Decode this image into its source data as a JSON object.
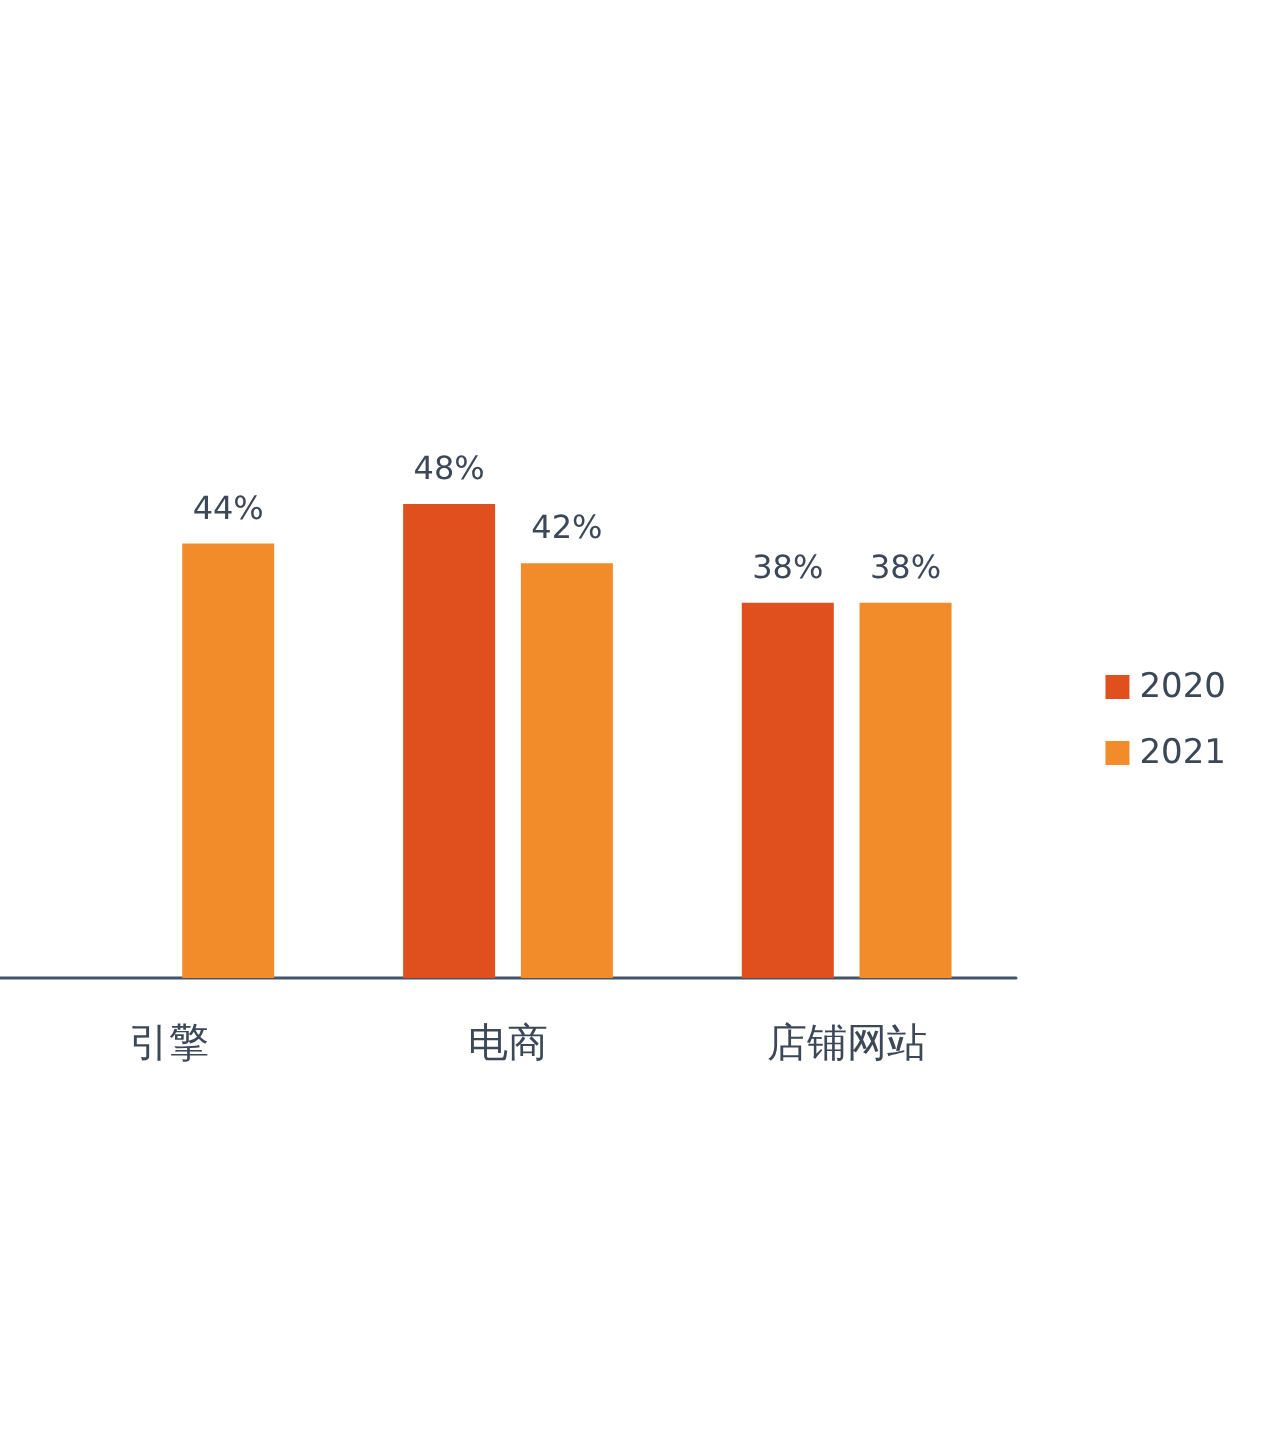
{
  "chart_data": {
    "type": "bar",
    "categories": [
      "引擎",
      "电商",
      "店铺网站"
    ],
    "series": [
      {
        "name": "2020",
        "color": "#e0501e",
        "values": [
          null,
          48,
          38
        ],
        "value_labels": [
          null,
          "48%",
          "38%"
        ]
      },
      {
        "name": "2021",
        "color": "#f28b2a",
        "values": [
          44,
          42,
          38
        ],
        "value_labels": [
          "44%",
          "42%",
          "38%"
        ]
      }
    ],
    "legend": "right"
  }
}
